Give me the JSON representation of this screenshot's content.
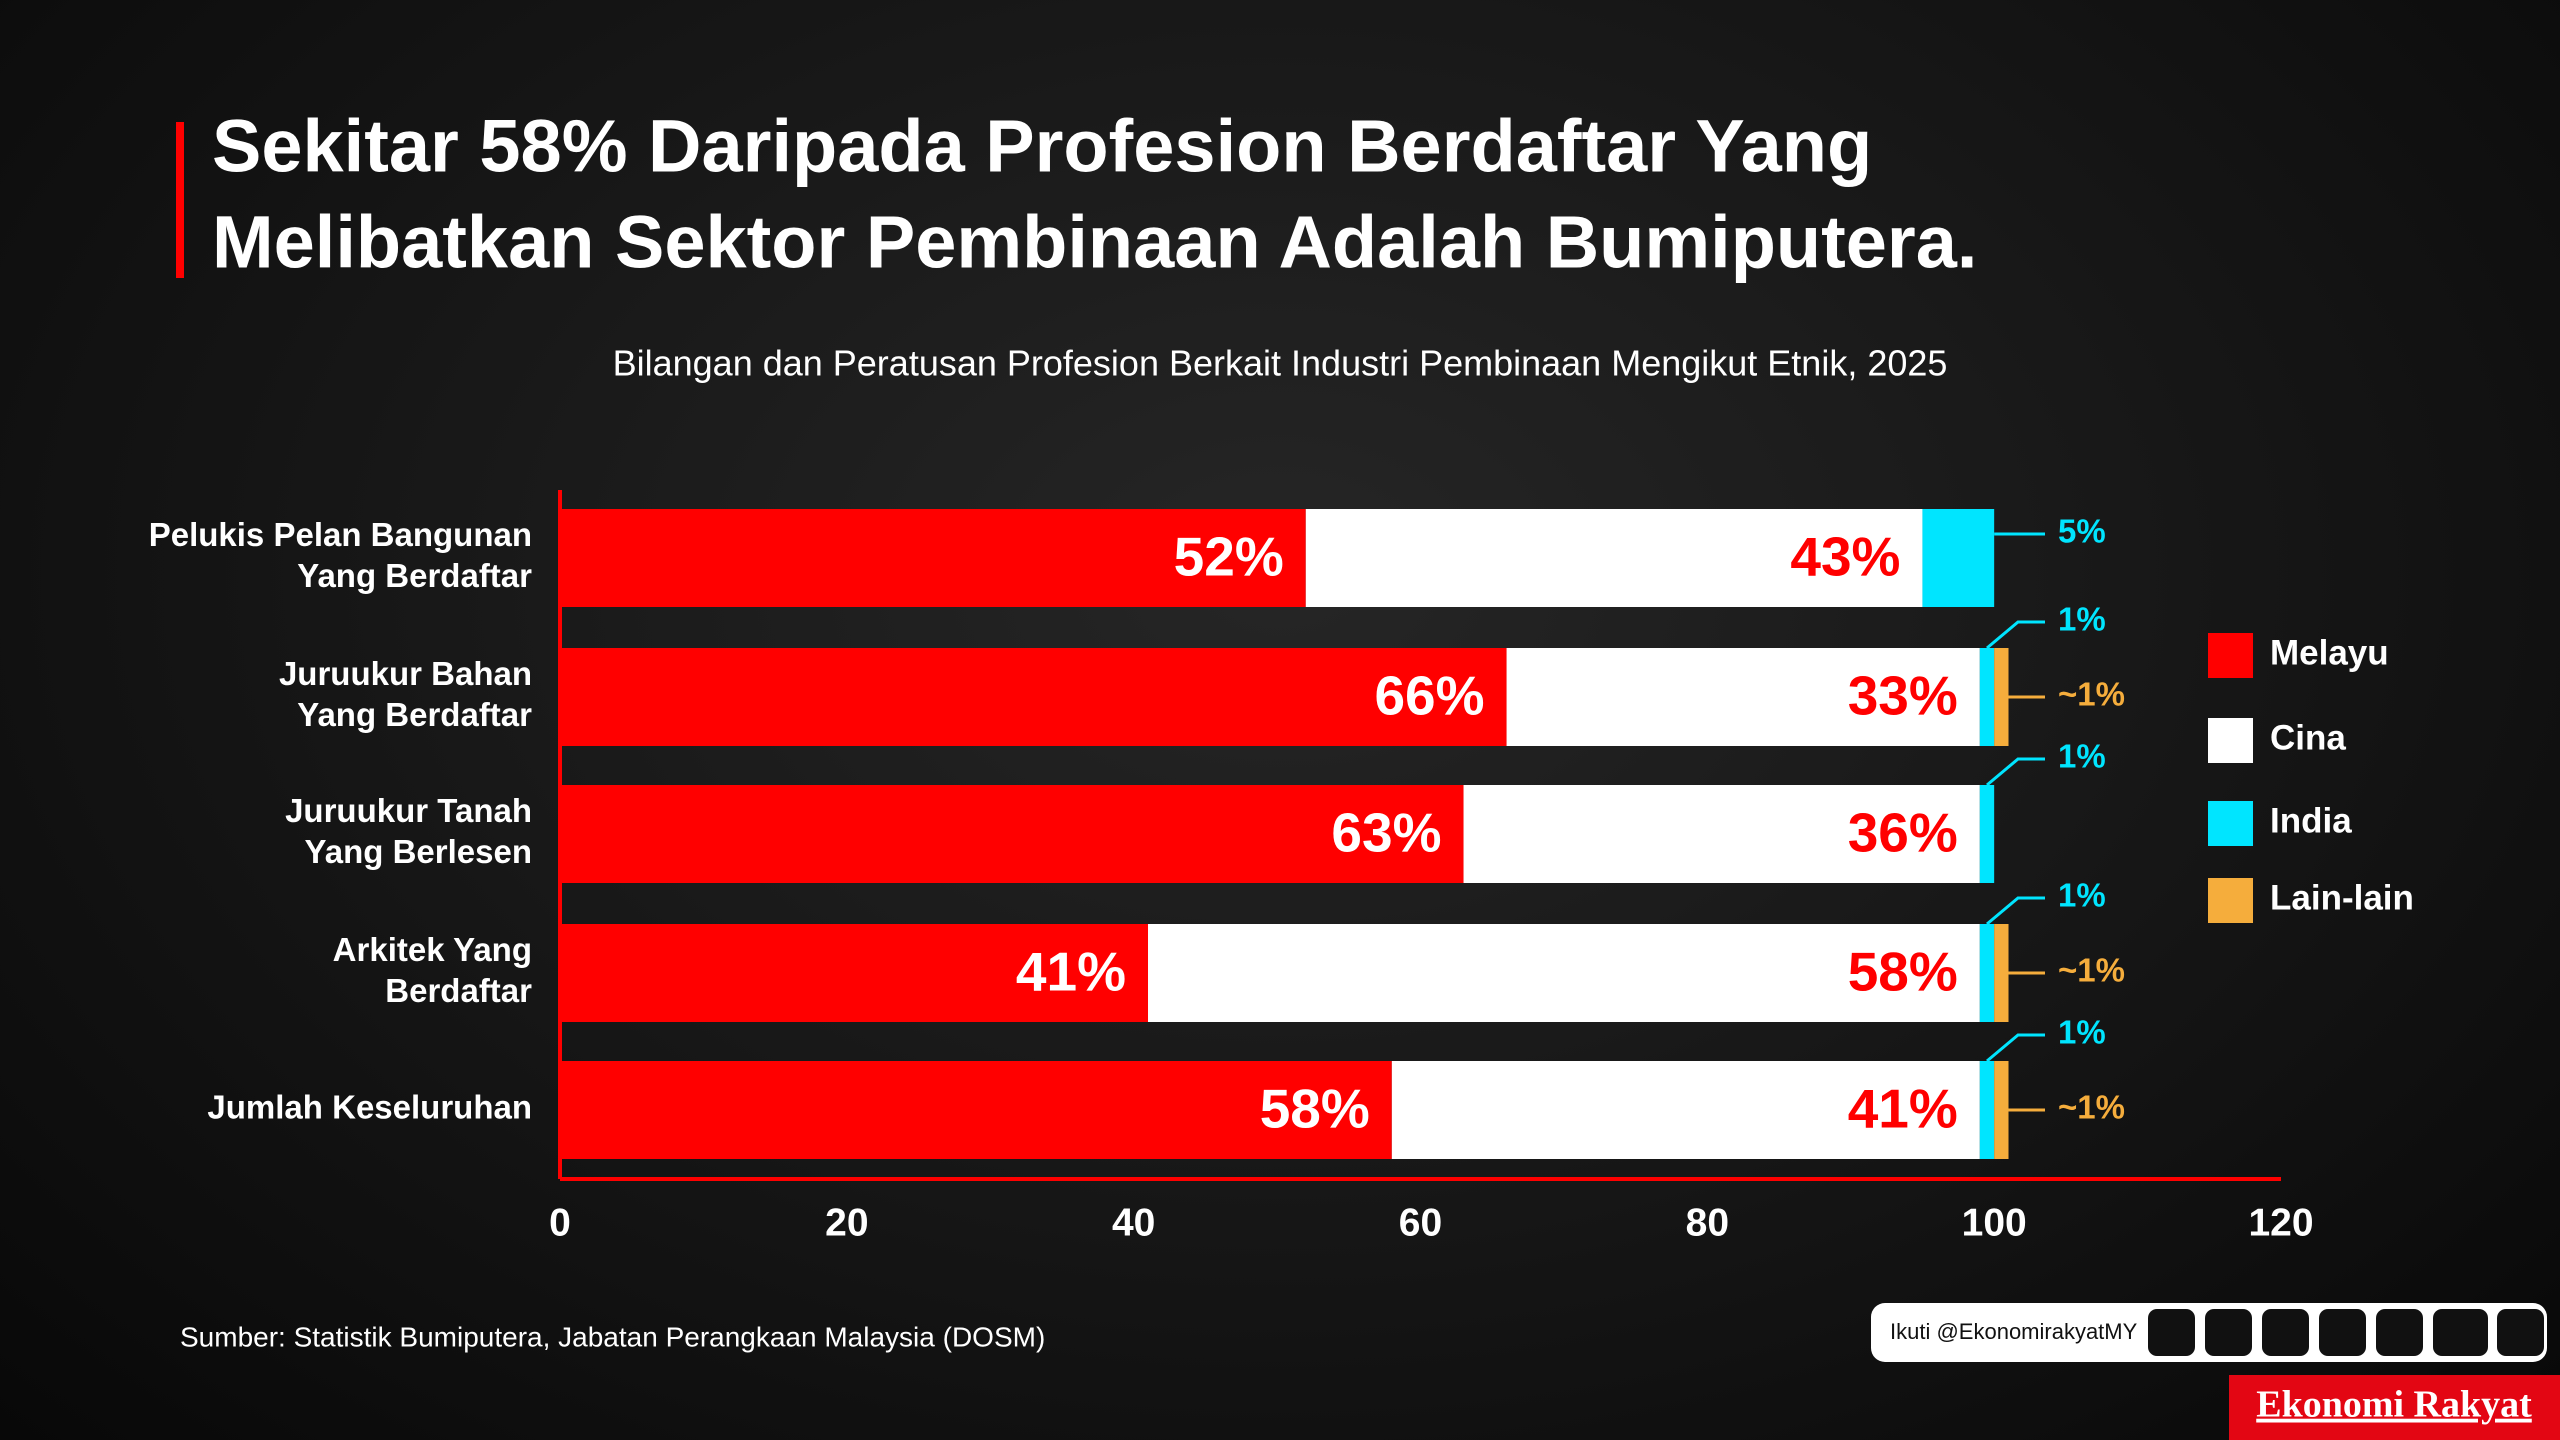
{
  "chart_data": {
    "type": "bar",
    "stacked": true,
    "orientation": "horizontal",
    "title": [
      "Sekitar 58% Daripada Profesion Berdaftar Yang",
      "Melibatkan Sektor Pembinaan Adalah Bumiputera."
    ],
    "subtitle": "Bilangan dan Peratusan Profesion Berkait Industri Pembinaan Mengikut Etnik, 2025",
    "categories": [
      [
        "Pelukis Pelan Bangunan",
        "Yang Berdaftar"
      ],
      [
        "Juruukur Bahan",
        "Yang Berdaftar"
      ],
      [
        "Juruukur Tanah",
        "Yang Berlesen"
      ],
      [
        "Arkitek Yang",
        "Berdaftar"
      ],
      [
        "Jumlah Keseluruhan"
      ]
    ],
    "series": [
      {
        "name": "Melayu",
        "color": "#ff0000",
        "values": [
          52,
          66,
          63,
          41,
          58
        ],
        "value_labels": [
          "52%",
          "66%",
          "63%",
          "41%",
          "58%"
        ]
      },
      {
        "name": "Cina",
        "color": "#ffffff",
        "values": [
          43,
          33,
          36,
          58,
          41
        ],
        "value_labels": [
          "43%",
          "33%",
          "36%",
          "58%",
          "41%"
        ]
      },
      {
        "name": "India",
        "color": "#00e5ff",
        "values": [
          5,
          1,
          1,
          1,
          1
        ],
        "value_labels": [
          "5%",
          "1%",
          "1%",
          "1%",
          "1%"
        ]
      },
      {
        "name": "Lain-lain",
        "color": "#f5ad3c",
        "values": [
          null,
          1,
          null,
          1,
          1
        ],
        "value_labels": [
          null,
          "~1%",
          null,
          "~1%",
          "~1%"
        ]
      }
    ],
    "xlim": [
      0,
      120
    ],
    "xticks": [
      0,
      20,
      40,
      60,
      80,
      100,
      120
    ],
    "legend": "right"
  },
  "footer": {
    "source": "Sumber: Statistik Bumiputera, Jabatan Perangkaan Malaysia (DOSM)",
    "social": "Ikuti @EkonomirakyatMY",
    "brand": "Ekonomi Rakyat"
  }
}
